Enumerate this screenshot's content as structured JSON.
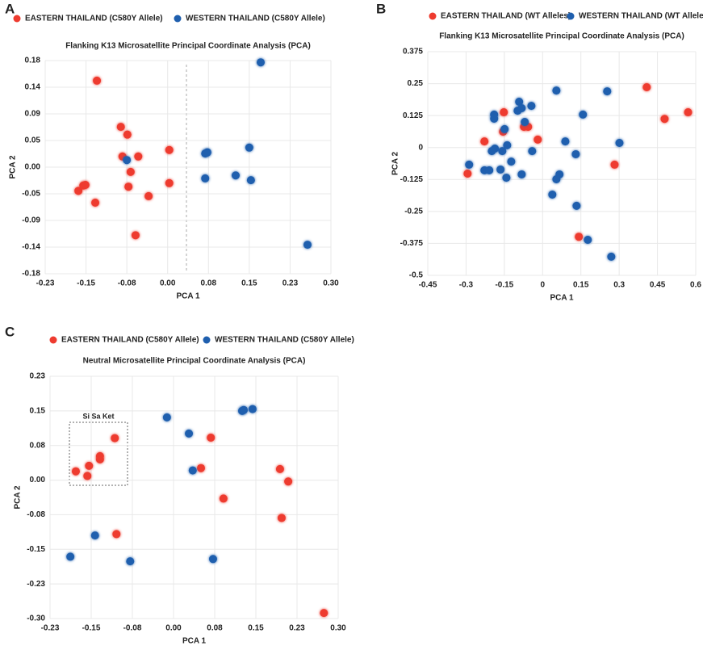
{
  "chart_data": [
    {
      "type": "scatter",
      "panel_label": "A",
      "title": "Flanking K13 Microsatellite Principal Coordinate Analysis (PCA)",
      "x_label": "PCA 1",
      "y_label": "PCA 2",
      "grid": true,
      "xlim": [
        -0.225,
        0.3
      ],
      "xticks": [
        {
          "value": -0.225,
          "label": "-0.23"
        },
        {
          "value": -0.15,
          "label": "-0.15"
        },
        {
          "value": -0.075,
          "label": "-0.08"
        },
        {
          "value": 0,
          "label": "0.00"
        },
        {
          "value": 0.075,
          "label": "0.08"
        },
        {
          "value": 0.15,
          "label": "0.15"
        },
        {
          "value": 0.225,
          "label": "0.23"
        },
        {
          "value": 0.3,
          "label": "0.30"
        }
      ],
      "ylim": [
        -0.18,
        0.18
      ],
      "yticks": [
        {
          "value": 0.18,
          "label": "0.18"
        },
        {
          "value": 0.135,
          "label": "0.14"
        },
        {
          "value": 0.09,
          "label": "0.09"
        },
        {
          "value": 0.045,
          "label": "0.05"
        },
        {
          "value": 0,
          "label": "0.00"
        },
        {
          "value": -0.045,
          "label": "-0.05"
        },
        {
          "value": -0.09,
          "label": "-0.09"
        },
        {
          "value": -0.135,
          "label": "-0.14"
        },
        {
          "value": -0.18,
          "label": "-0.18"
        }
      ],
      "series": [
        {
          "name": "EASTERN THAILAND (C580Y Allele)",
          "color": "#ee3b2f",
          "x": [
            -0.13,
            -0.086,
            -0.074,
            -0.083,
            -0.054,
            0.003,
            -0.068,
            -0.072,
            -0.035,
            0.003,
            -0.164,
            -0.155,
            -0.151,
            -0.133,
            -0.059
          ],
          "y": [
            0.146,
            0.068,
            0.055,
            0.018,
            0.018,
            0.029,
            -0.008,
            -0.033,
            -0.049,
            -0.027,
            -0.04,
            -0.031,
            -0.03,
            -0.06,
            -0.115
          ]
        },
        {
          "name": "WESTERN THAILAND (C580Y Allele)",
          "color": "#1f5fae",
          "x": [
            0.171,
            -0.075,
            0.069,
            0.073,
            0.15,
            0.069,
            0.125,
            0.153,
            0.257
          ],
          "y": [
            0.177,
            0.012,
            0.023,
            0.025,
            0.033,
            -0.019,
            -0.014,
            -0.022,
            -0.131
          ]
        }
      ]
    },
    {
      "type": "scatter",
      "panel_label": "B",
      "title": "Flanking K13 Microsatellite Principal Coordinate Analysis (PCA)",
      "x_label": "PCA 1",
      "y_label": "PCA 2",
      "grid": true,
      "xlim": [
        -0.45,
        0.6
      ],
      "xticks": [
        -0.45,
        -0.3,
        -0.15,
        0,
        0.15,
        0.3,
        0.45,
        0.6
      ],
      "ylim": [
        -0.5,
        0.375
      ],
      "yticks": [
        0.375,
        0.25,
        0.125,
        0,
        -0.125,
        -0.25,
        -0.375,
        -0.5
      ],
      "series": [
        {
          "name": "EASTERN THAILAND (WT Alleles)",
          "color": "#ee3b2f",
          "x": [
            0.408,
            0.57,
            0.478,
            -0.152,
            -0.073,
            -0.057,
            -0.155,
            -0.228,
            -0.019,
            -0.294,
            0.282,
            0.142
          ],
          "y": [
            0.236,
            0.138,
            0.112,
            0.138,
            0.081,
            0.081,
            0.062,
            0.024,
            0.031,
            -0.102,
            -0.067,
            -0.349
          ]
        },
        {
          "name": "WESTERN THAILAND (WT Alleles)",
          "color": "#1f5fae",
          "x": [
            -0.19,
            -0.19,
            -0.092,
            -0.044,
            -0.098,
            -0.082,
            0.054,
            0.253,
            0.158,
            -0.07,
            -0.149,
            -0.139,
            -0.187,
            -0.199,
            -0.158,
            -0.041,
            -0.288,
            -0.228,
            -0.209,
            -0.165,
            -0.142,
            -0.123,
            -0.082,
            0.089,
            0.13,
            0.301,
            0.066,
            0.054,
            0.038,
            0.133,
            0.177,
            0.269
          ],
          "y": [
            0.129,
            0.113,
            0.179,
            0.163,
            0.144,
            0.154,
            0.223,
            0.22,
            0.129,
            0.1,
            0.072,
            0.009,
            -0.004,
            -0.014,
            -0.014,
            -0.014,
            -0.067,
            -0.089,
            -0.089,
            -0.086,
            -0.118,
            -0.055,
            -0.105,
            0.024,
            -0.026,
            0.018,
            -0.105,
            -0.124,
            -0.184,
            -0.228,
            -0.361,
            -0.427
          ]
        }
      ]
    },
    {
      "type": "scatter",
      "panel_label": "C",
      "title": "Neutral Microsatellite Principal Coordinate Analysis (PCA)",
      "x_label": "PCA 1",
      "y_label": "PCA 2",
      "grid": true,
      "annotation": "Si Sa Ket",
      "xlim": [
        -0.225,
        0.3
      ],
      "xticks": [
        {
          "value": -0.225,
          "label": "-0.23"
        },
        {
          "value": -0.15,
          "label": "-0.15"
        },
        {
          "value": -0.075,
          "label": "-0.08"
        },
        {
          "value": 0,
          "label": "0.00"
        },
        {
          "value": 0.075,
          "label": "0.08"
        },
        {
          "value": 0.15,
          "label": "0.15"
        },
        {
          "value": 0.225,
          "label": "0.23"
        },
        {
          "value": 0.3,
          "label": "0.30"
        }
      ],
      "ylim": [
        -0.3,
        0.225
      ],
      "yticks": [
        {
          "value": 0.225,
          "label": "0.23"
        },
        {
          "value": 0.15,
          "label": "0.15"
        },
        {
          "value": 0.075,
          "label": "0.08"
        },
        {
          "value": 0,
          "label": "0.00"
        },
        {
          "value": -0.075,
          "label": "-0.08"
        },
        {
          "value": -0.15,
          "label": "-0.15"
        },
        {
          "value": -0.225,
          "label": "-0.23"
        },
        {
          "value": -0.3,
          "label": "-0.30"
        }
      ],
      "series": [
        {
          "name": "EASTERN THAILAND (C580Y Allele)",
          "color": "#ee3b2f",
          "x": [
            -0.178,
            -0.154,
            -0.157,
            -0.134,
            -0.134,
            -0.107,
            -0.104,
            0.068,
            0.05,
            0.091,
            0.194,
            0.209,
            0.197,
            0.274
          ],
          "y": [
            0.019,
            0.031,
            0.009,
            0.045,
            0.052,
            0.091,
            -0.117,
            0.092,
            0.026,
            -0.04,
            0.024,
            -0.003,
            -0.082,
            -0.288
          ]
        },
        {
          "name": "WESTERN THAILAND (C580Y Allele)",
          "color": "#1f5fae",
          "x": [
            -0.012,
            0.028,
            0.035,
            0.125,
            0.128,
            0.144,
            -0.143,
            -0.188,
            -0.079,
            0.072
          ],
          "y": [
            0.136,
            0.101,
            0.021,
            0.15,
            0.152,
            0.154,
            -0.12,
            -0.166,
            -0.176,
            -0.171
          ]
        }
      ]
    }
  ]
}
